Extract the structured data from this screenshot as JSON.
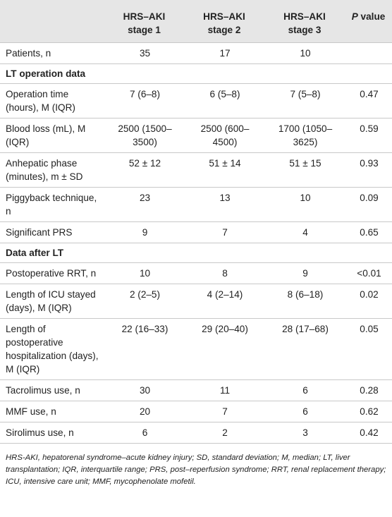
{
  "header": [
    [
      "HRS–AKI",
      "stage 1"
    ],
    [
      "HRS–AKI",
      "stage 2"
    ],
    [
      "HRS–AKI",
      "stage 3"
    ],
    [
      "P",
      "value"
    ]
  ],
  "rows": [
    {
      "label": "Patients, n",
      "values": [
        "35",
        "17",
        "10",
        ""
      ]
    },
    {
      "section": "LT operation data"
    },
    {
      "label": "Operation time (hours), M (IQR)",
      "values": [
        "7 (6–8)",
        "6 (5–8)",
        "7 (5–8)",
        "0.47"
      ]
    },
    {
      "label": "Blood loss (mL), M (IQR)",
      "values": [
        "2500 (1500–3500)",
        "2500 (600–4500)",
        "1700 (1050–3625)",
        "0.59"
      ]
    },
    {
      "label": "Anhepatic phase (minutes), m ± SD",
      "values": [
        "52 ± 12",
        "51 ± 14",
        "51 ± 15",
        "0.93"
      ]
    },
    {
      "label": "Piggyback technique, n",
      "values": [
        "23",
        "13",
        "10",
        "0.09"
      ]
    },
    {
      "label": "Significant PRS",
      "values": [
        "9",
        "7",
        "4",
        "0.65"
      ]
    },
    {
      "section": "Data after LT"
    },
    {
      "label": "Postoperative RRT, n",
      "values": [
        "10",
        "8",
        "9",
        "<0.01"
      ]
    },
    {
      "label": "Length of ICU stayed (days), M (IQR)",
      "values": [
        "2 (2–5)",
        "4 (2–14)",
        "8 (6–18)",
        "0.02"
      ]
    },
    {
      "label": "Length of postoperative hospitalization (days), M (IQR)",
      "values": [
        "22 (16–33)",
        "29 (20–40)",
        "28 (17–68)",
        "0.05"
      ]
    },
    {
      "label": "Tacrolimus use, n",
      "values": [
        "30",
        "11",
        "6",
        "0.28"
      ]
    },
    {
      "label": "MMF use, n",
      "values": [
        "20",
        "7",
        "6",
        "0.62"
      ]
    },
    {
      "label": "Sirolimus use, n",
      "values": [
        "6",
        "2",
        "3",
        "0.42"
      ]
    }
  ],
  "footnote": "HRS-AKI, hepatorenal syndrome–acute kidney injury; SD, standard deviation; M, median; LT, liver transplantation; IQR, interquartile range; PRS, post–reperfusion syndrome; RRT, renal replacement therapy; ICU, intensive care unit; MMF, mycophenolate mofetil."
}
